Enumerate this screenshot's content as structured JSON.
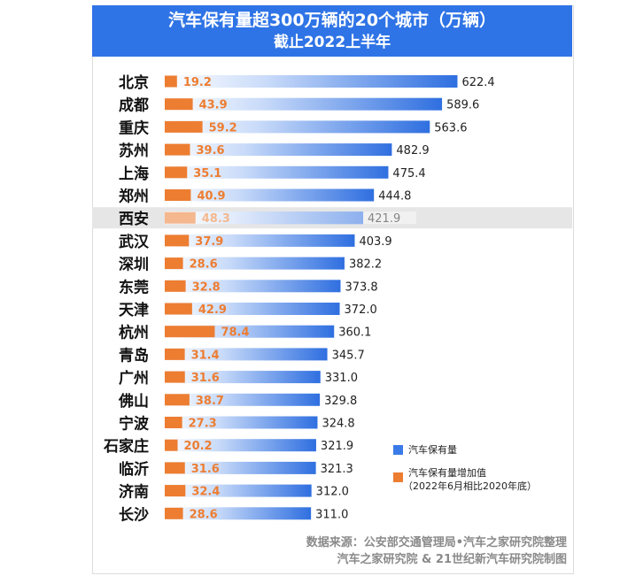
{
  "header": {
    "title": "汽车保有量超300万辆的20个城市（万辆）",
    "subtitle": "截止2022上半年"
  },
  "colors": {
    "header_bg": "#2f74e6",
    "total_bar": "#2f6fe0",
    "increase_bar": "#ed7d31",
    "increase_label": "#ed7d31",
    "highlight_row": "#e6e6e6"
  },
  "chart_data": {
    "type": "bar",
    "orientation": "horizontal",
    "title": "汽车保有量超300万辆的20个城市（万辆）",
    "subtitle": "截止2022上半年",
    "unit": "万辆",
    "highlighted_category": "西安",
    "categories": [
      "北京",
      "成都",
      "重庆",
      "苏州",
      "上海",
      "郑州",
      "西安",
      "武汉",
      "深圳",
      "东莞",
      "天津",
      "杭州",
      "青岛",
      "广州",
      "佛山",
      "宁波",
      "石家庄",
      "临沂",
      "济南",
      "长沙"
    ],
    "series": [
      {
        "name": "汽车保有量",
        "values": [
          622.4,
          589.6,
          563.6,
          482.9,
          475.4,
          444.8,
          421.9,
          403.9,
          382.2,
          373.8,
          372.0,
          360.1,
          345.7,
          331.0,
          329.8,
          324.8,
          321.9,
          321.3,
          312.0,
          311.0
        ],
        "labels": [
          "622.4",
          "589.6",
          "563.6",
          "482.9",
          "475.4",
          "444.8",
          "421.9",
          "403.9",
          "382.2",
          "373.8",
          "372.0",
          "360.1",
          "345.7",
          "331.0",
          "329.8",
          "324.8",
          "321.9",
          "321.3",
          "312.0",
          "311.0"
        ]
      },
      {
        "name": "汽车保有量增加值",
        "name_note": "（2022年6月相比2020年底）",
        "values": [
          19.2,
          43.9,
          59.2,
          39.6,
          35.1,
          40.9,
          48.3,
          37.9,
          28.6,
          32.8,
          42.9,
          78.4,
          31.4,
          31.6,
          38.7,
          27.3,
          20.2,
          31.6,
          32.4,
          28.6
        ],
        "labels": [
          "19.2",
          "43.9",
          "59.2",
          "39.6",
          "35.1",
          "40.9",
          "48.3",
          "37.9",
          "28.6",
          "32.8",
          "42.9",
          "78.4",
          "31.4",
          "31.6",
          "38.7",
          "27.3",
          "20.2",
          "31.6",
          "32.4",
          "28.6"
        ]
      }
    ]
  },
  "legend": {
    "total_label": "汽车保有量",
    "increase_label": "汽车保有量增加值",
    "increase_note": "（2022年6月相比2020年底）"
  },
  "footer": {
    "line1": "数据来源：公安部交通管理局•汽车之家研究院整理",
    "line2": "汽车之家研究院 & 21世纪新汽车研究院制图"
  }
}
